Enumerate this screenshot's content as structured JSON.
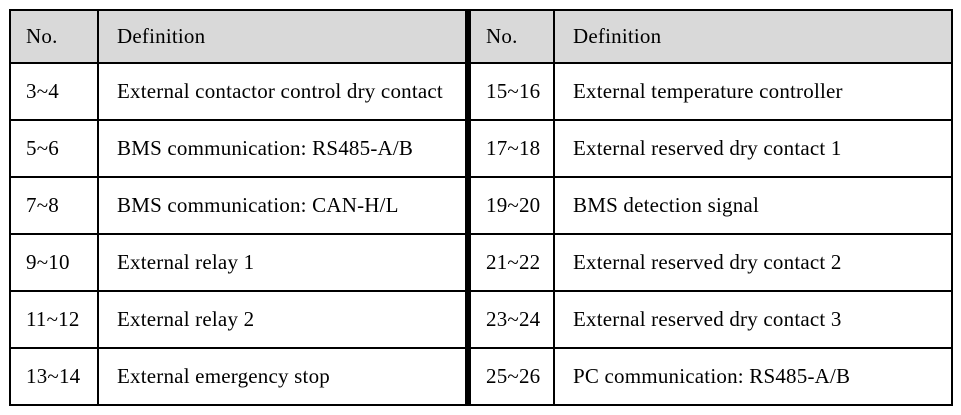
{
  "page": {
    "background": "#ffffff"
  },
  "table": {
    "border_color": "#000000",
    "header_bg": "#d9d9d9",
    "row_bg": "#ffffff",
    "halves": [
      {
        "header": {
          "no": "No.",
          "definition": "Definition"
        },
        "rows": [
          {
            "no": "3~4",
            "definition": "External contactor control dry contact"
          },
          {
            "no": "5~6",
            "definition": "BMS communication: RS485-A/B"
          },
          {
            "no": "7~8",
            "definition": "BMS communication: CAN-H/L"
          },
          {
            "no": "9~10",
            "definition": "External relay 1"
          },
          {
            "no": "11~12",
            "definition": "External relay 2"
          },
          {
            "no": "13~14",
            "definition": "External emergency stop"
          }
        ]
      },
      {
        "header": {
          "no": "No.",
          "definition": "Definition"
        },
        "rows": [
          {
            "no": "15~16",
            "definition": "External temperature controller"
          },
          {
            "no": "17~18",
            "definition": "External reserved dry contact 1"
          },
          {
            "no": "19~20",
            "definition": "BMS detection signal"
          },
          {
            "no": "21~22",
            "definition": "External reserved dry contact 2"
          },
          {
            "no": "23~24",
            "definition": "External reserved dry contact 3"
          },
          {
            "no": "25~26",
            "definition": "PC communication: RS485-A/B"
          }
        ]
      }
    ]
  }
}
